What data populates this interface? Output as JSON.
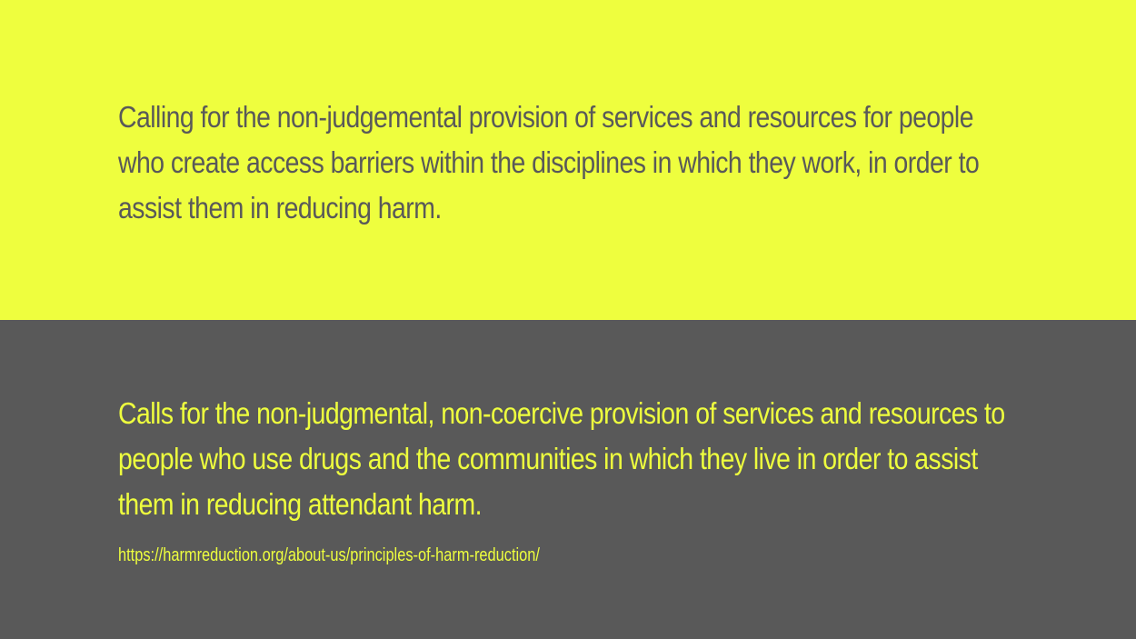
{
  "slide": {
    "top_quote": "Calling for the non-judgemental provision of services and resources for people who create access barriers within the disciplines in which they work, in order to assist them in reducing harm.",
    "bottom_quote": "Calls for the non-judgmental, non-coercive provision of services and resources to people who use drugs and the communities in which they live in order to assist them in reducing attendant harm.",
    "source_url": "https://harmreduction.org/about-us/principles-of-harm-reduction/"
  },
  "colors": {
    "yellow": "#eefe3e",
    "gray": "#595959"
  }
}
